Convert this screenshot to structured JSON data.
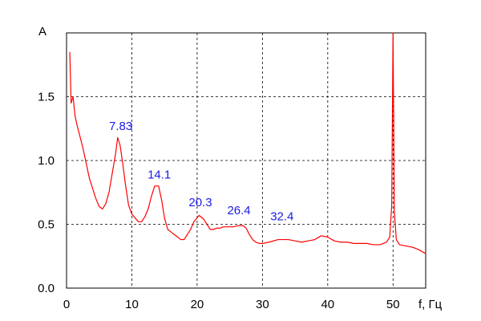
{
  "chart_data": {
    "type": "line",
    "title": "",
    "xlabel": "f, Гц",
    "ylabel": "A",
    "xlim": [
      0,
      55
    ],
    "ylim": [
      0,
      2.0
    ],
    "grid": true,
    "x_ticks": [
      "0",
      "10",
      "20",
      "30",
      "40",
      "50"
    ],
    "y_ticks": [
      "0.0",
      "0.5",
      "1.0",
      "1.5"
    ],
    "series_color": "#ff0000",
    "annotation_color": "#1a1ae6",
    "series": [
      {
        "x": [
          0.5,
          0.7,
          1.0,
          1.3,
          1.6,
          2.0,
          2.5,
          3.0,
          3.5,
          4.0,
          4.5,
          5.0,
          5.5,
          6.0,
          6.5,
          7.0,
          7.5,
          7.83,
          8.2,
          8.6,
          9.0,
          9.5,
          10.0,
          10.5,
          11.0,
          11.5,
          12.0,
          12.5,
          13.0,
          13.5,
          14.1,
          14.6,
          15.0,
          15.5,
          16.0,
          16.5,
          17.0,
          17.5,
          18.0,
          18.5,
          19.0,
          19.5,
          20.3,
          21.0,
          21.5,
          22.0,
          22.5,
          23.0,
          23.5,
          24.0,
          24.5,
          25.0,
          25.5,
          26.4,
          27.0,
          27.5,
          28.0,
          28.5,
          29.0,
          29.5,
          30.0,
          31.0,
          32.4,
          33.0,
          34.0,
          35.0,
          36.0,
          37.0,
          38.0,
          39.0,
          40.0,
          41.0,
          42.0,
          43.0,
          44.0,
          45.0,
          46.0,
          47.0,
          48.0,
          49.0,
          49.5,
          49.8,
          50.0,
          50.2,
          50.5,
          51.0,
          52.0,
          53.0,
          54.0,
          55.0
        ],
        "y": [
          1.85,
          1.45,
          1.5,
          1.35,
          1.28,
          1.2,
          1.1,
          0.98,
          0.86,
          0.78,
          0.7,
          0.64,
          0.62,
          0.66,
          0.75,
          0.9,
          1.05,
          1.18,
          1.12,
          0.98,
          0.82,
          0.65,
          0.58,
          0.55,
          0.52,
          0.52,
          0.56,
          0.62,
          0.72,
          0.8,
          0.8,
          0.68,
          0.55,
          0.46,
          0.44,
          0.42,
          0.4,
          0.38,
          0.38,
          0.42,
          0.46,
          0.52,
          0.57,
          0.54,
          0.5,
          0.46,
          0.46,
          0.47,
          0.47,
          0.48,
          0.48,
          0.48,
          0.48,
          0.49,
          0.49,
          0.47,
          0.42,
          0.38,
          0.36,
          0.35,
          0.35,
          0.36,
          0.38,
          0.38,
          0.38,
          0.37,
          0.36,
          0.37,
          0.38,
          0.41,
          0.4,
          0.37,
          0.36,
          0.36,
          0.35,
          0.35,
          0.35,
          0.34,
          0.34,
          0.36,
          0.4,
          0.65,
          2.0,
          0.6,
          0.38,
          0.34,
          0.33,
          0.32,
          0.3,
          0.27
        ]
      }
    ],
    "annotations": [
      {
        "text": "7.83",
        "x": 8.3,
        "y": 1.24
      },
      {
        "text": "14.1",
        "x": 14.2,
        "y": 0.86
      },
      {
        "text": "20.3",
        "x": 20.5,
        "y": 0.64
      },
      {
        "text": "26.4",
        "x": 26.4,
        "y": 0.58
      },
      {
        "text": "32.4",
        "x": 33.0,
        "y": 0.53
      }
    ]
  }
}
